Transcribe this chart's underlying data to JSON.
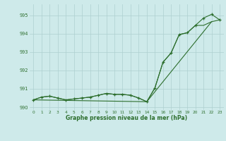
{
  "x": [
    0,
    1,
    2,
    3,
    4,
    5,
    6,
    7,
    8,
    9,
    10,
    11,
    12,
    13,
    14,
    15,
    16,
    17,
    18,
    19,
    20,
    21,
    22,
    23
  ],
  "line1": [
    990.4,
    990.55,
    990.6,
    990.5,
    990.4,
    990.45,
    990.5,
    990.55,
    990.65,
    990.75,
    990.7,
    990.7,
    990.65,
    990.5,
    990.3,
    991.05,
    992.45,
    992.95,
    993.95,
    994.05,
    994.45,
    994.85,
    995.05,
    994.75
  ],
  "line2": [
    990.4,
    990.55,
    990.6,
    990.5,
    990.4,
    990.45,
    990.5,
    990.55,
    990.65,
    990.75,
    990.7,
    990.7,
    990.65,
    990.5,
    990.3,
    991.05,
    992.45,
    992.95,
    993.95,
    994.05,
    994.45,
    994.45,
    994.65,
    994.75
  ],
  "line3_x": [
    0,
    14,
    22
  ],
  "line3_y": [
    990.4,
    990.3,
    994.65
  ],
  "ylim": [
    989.85,
    995.6
  ],
  "xlim": [
    -0.5,
    23.5
  ],
  "yticks": [
    990,
    991,
    992,
    993,
    994,
    995
  ],
  "xticks": [
    0,
    1,
    2,
    3,
    4,
    5,
    6,
    7,
    8,
    9,
    10,
    11,
    12,
    13,
    14,
    15,
    16,
    17,
    18,
    19,
    20,
    21,
    22,
    23
  ],
  "xlabel": "Graphe pression niveau de la mer (hPa)",
  "line_color": "#2d6e2d",
  "bg_color": "#ceeaea",
  "grid_color": "#aed0d0"
}
